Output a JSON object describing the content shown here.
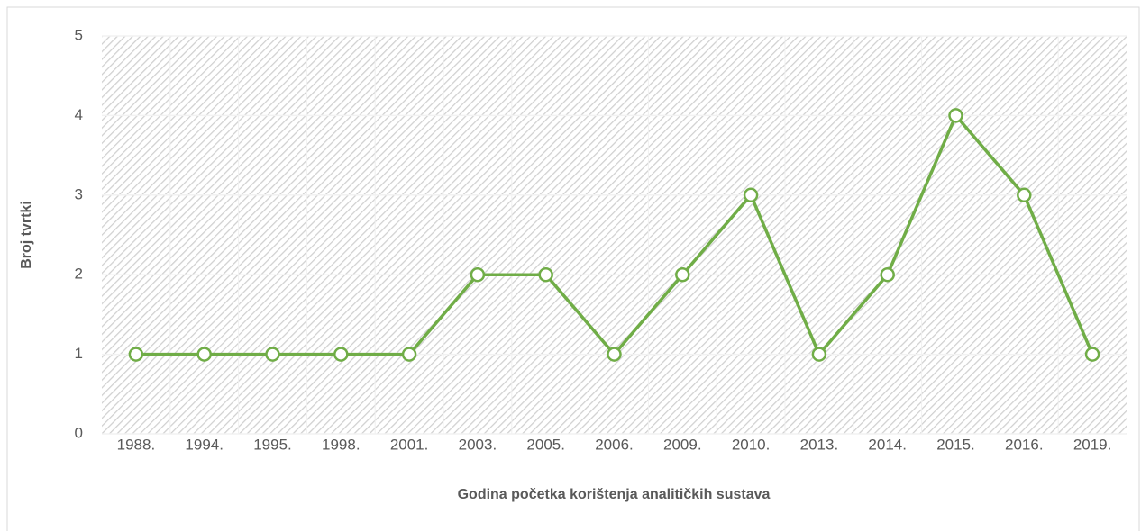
{
  "chart_data": {
    "type": "line",
    "x_label": "Godina početka korištenja analitičkih sustava",
    "y_label": "Broj tvrtki",
    "categories": [
      "1988.",
      "1994.",
      "1995.",
      "1998.",
      "2001.",
      "2003.",
      "2005.",
      "2006.",
      "2009.",
      "2010.",
      "2013.",
      "2014.",
      "2015.",
      "2016.",
      "2019."
    ],
    "series": [
      {
        "color": "#70ad47",
        "values": [
          1,
          1,
          1,
          1,
          1,
          2,
          2,
          1,
          2,
          3,
          1,
          2,
          4,
          3,
          1
        ]
      }
    ],
    "ylim": [
      0,
      5
    ],
    "yticks": [
      0,
      1,
      2,
      3,
      4,
      5
    ],
    "grid": true
  }
}
